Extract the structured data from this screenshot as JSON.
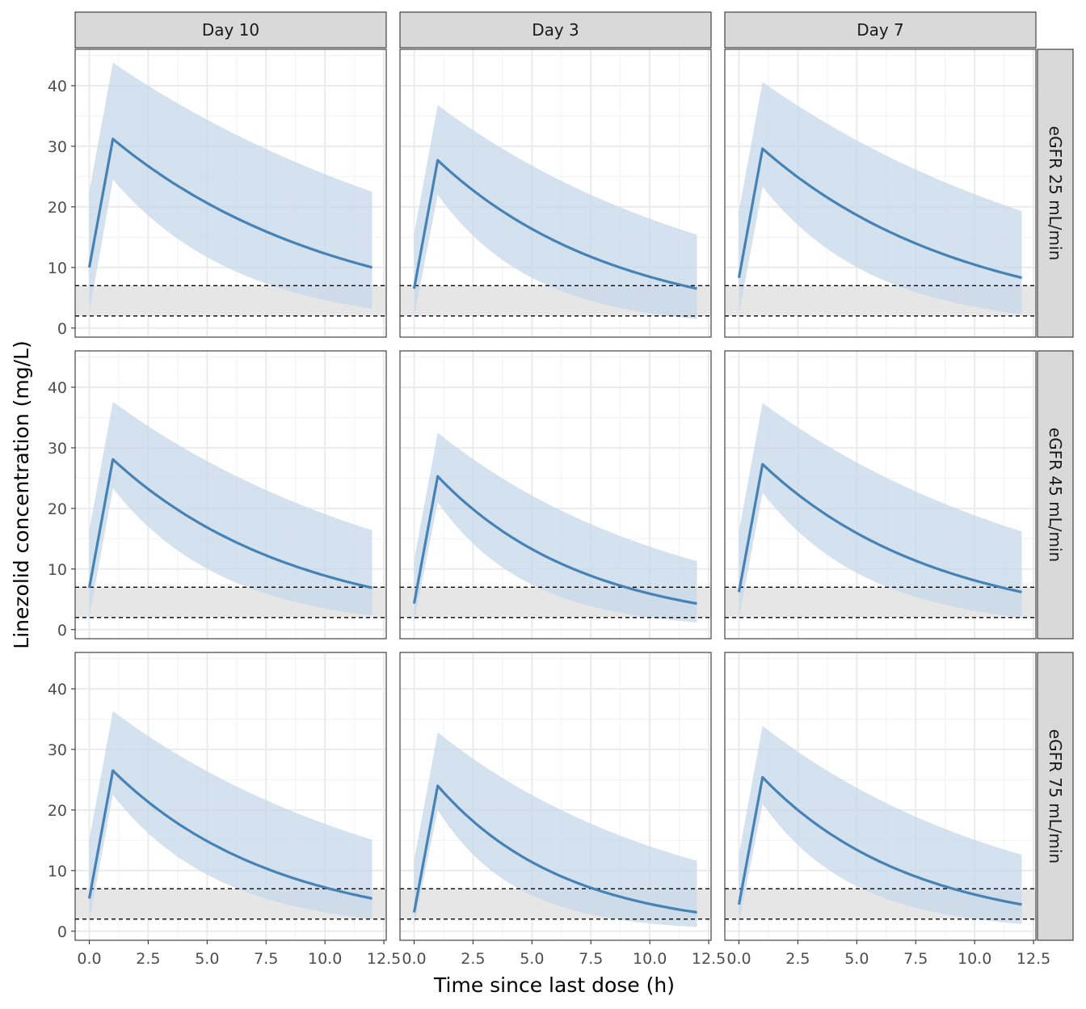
{
  "chart_data": {
    "type": "area",
    "xlabel": "Time since last dose (h)",
    "ylabel": "Linezolid concentration (mg/L)",
    "xlim": [
      -0.6,
      12.6
    ],
    "ylim": [
      -1.5,
      46
    ],
    "x_ticks": [
      0,
      2.5,
      5,
      7.5,
      10,
      12.5
    ],
    "x_tick_labels": [
      "0.0",
      "2.5",
      "5.0",
      "7.5",
      "10.0",
      "12.5"
    ],
    "y_ticks": [
      0,
      10,
      20,
      30,
      40
    ],
    "y_tick_labels": [
      "0",
      "10",
      "20",
      "30",
      "40"
    ],
    "grid": true,
    "facet_columns": [
      "Day 10",
      "Day 3",
      "Day 7"
    ],
    "facet_rows": [
      "eGFR 25 mL/min",
      "eGFR 45 mL/min",
      "eGFR 75 mL/min"
    ],
    "reference_band": {
      "lower": 2,
      "upper": 7,
      "fill": "#e6e6e6",
      "line_style": "dashed"
    },
    "line_color": "#4682b4",
    "ribbon_color": "#c6d7ea",
    "panels": [
      {
        "row": "eGFR 25 mL/min",
        "col": "Day 10",
        "trough": 10.0,
        "peak": 31.2,
        "end": 10.0,
        "lo_start": 2.5,
        "lo_peak": 24.5,
        "lo_end": 3.2,
        "hi_start": 22.5,
        "hi_peak": 43.8,
        "hi_end": 22.5
      },
      {
        "row": "eGFR 25 mL/min",
        "col": "Day 3",
        "trough": 6.5,
        "peak": 27.7,
        "end": 6.5,
        "lo_start": 1.8,
        "lo_peak": 22.0,
        "lo_end": 1.5,
        "hi_start": 15.5,
        "hi_peak": 36.8,
        "hi_end": 15.4
      },
      {
        "row": "eGFR 25 mL/min",
        "col": "Day 7",
        "trough": 8.3,
        "peak": 29.6,
        "end": 8.3,
        "lo_start": 2.2,
        "lo_peak": 23.3,
        "lo_end": 2.3,
        "hi_start": 19.3,
        "hi_peak": 40.6,
        "hi_end": 19.3
      },
      {
        "row": "eGFR 45 mL/min",
        "col": "Day 10",
        "trough": 6.9,
        "peak": 28.1,
        "end": 6.9,
        "lo_start": 2.0,
        "lo_peak": 23.3,
        "lo_end": 2.3,
        "hi_start": 16.4,
        "hi_peak": 37.6,
        "hi_end": 16.4
      },
      {
        "row": "eGFR 45 mL/min",
        "col": "Day 3",
        "trough": 4.3,
        "peak": 25.3,
        "end": 4.3,
        "lo_start": 1.3,
        "lo_peak": 21.0,
        "lo_end": 1.2,
        "hi_start": 11.5,
        "hi_peak": 32.5,
        "hi_end": 11.3
      },
      {
        "row": "eGFR 45 mL/min",
        "col": "Day 7",
        "trough": 6.2,
        "peak": 27.3,
        "end": 6.2,
        "lo_start": 1.8,
        "lo_peak": 22.6,
        "lo_end": 2.0,
        "hi_start": 16.2,
        "hi_peak": 37.4,
        "hi_end": 16.2
      },
      {
        "row": "eGFR 75 mL/min",
        "col": "Day 10",
        "trough": 5.4,
        "peak": 26.5,
        "end": 5.4,
        "lo_start": 1.6,
        "lo_peak": 22.5,
        "lo_end": 2.0,
        "hi_start": 15.1,
        "hi_peak": 36.3,
        "hi_end": 15.1
      },
      {
        "row": "eGFR 75 mL/min",
        "col": "Day 3",
        "trough": 3.1,
        "peak": 24.0,
        "end": 3.1,
        "lo_start": 0.9,
        "lo_peak": 20.0,
        "lo_end": 0.7,
        "hi_start": 11.7,
        "hi_peak": 32.8,
        "hi_end": 11.6
      },
      {
        "row": "eGFR 75 mL/min",
        "col": "Day 7",
        "trough": 4.4,
        "peak": 25.4,
        "end": 4.4,
        "lo_start": 1.4,
        "lo_peak": 21.0,
        "lo_end": 1.2,
        "hi_start": 12.7,
        "hi_peak": 33.9,
        "hi_end": 12.6
      }
    ]
  }
}
